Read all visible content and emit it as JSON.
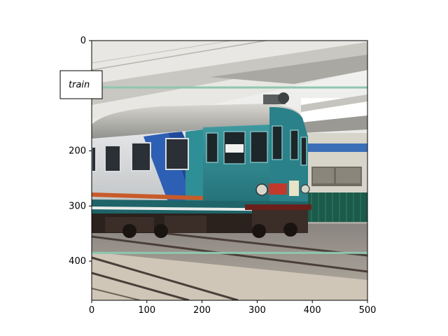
{
  "image": {
    "description_icon": "train-photo",
    "width_units": 500,
    "height_units": 471
  },
  "annotation": {
    "label": "train",
    "box": {
      "x0": 0,
      "y0": 85,
      "x1": 500,
      "y1": 385
    },
    "box_color": "#8fc6b0",
    "label_border_color": "#000000"
  },
  "axes": {
    "x_ticks": [
      0,
      100,
      200,
      300,
      400,
      500
    ],
    "y_ticks": [
      0,
      100,
      200,
      300,
      400
    ],
    "x_tick_labels": [
      "0",
      "100",
      "200",
      "300",
      "400",
      "500"
    ],
    "y_tick_labels": [
      "0",
      "100",
      "200",
      "300",
      "400"
    ],
    "xlim": [
      0,
      500
    ],
    "ylim": [
      471,
      0
    ]
  }
}
